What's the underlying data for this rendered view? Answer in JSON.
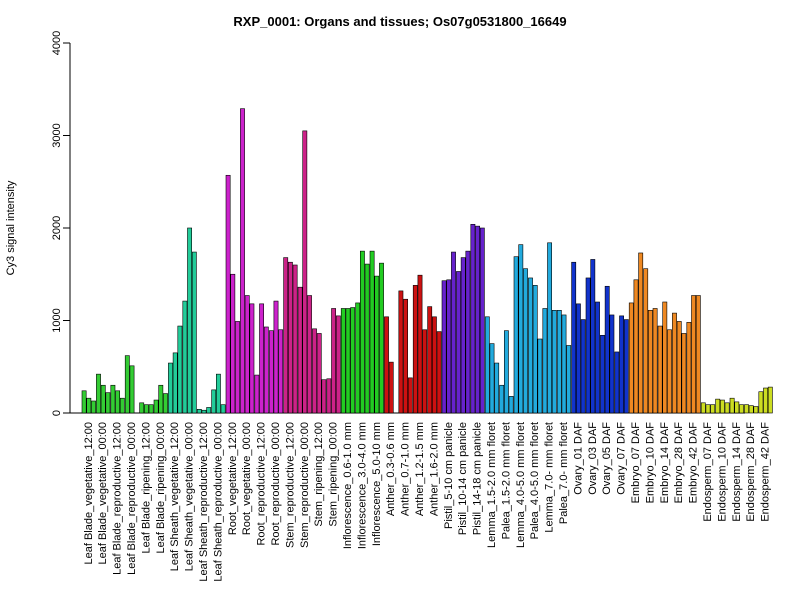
{
  "chart_data": {
    "type": "bar",
    "title": "RXP_0001: Organs and tissues; Os07g0531800_16649",
    "xlabel": "",
    "ylabel": "Cy3 signal intensity",
    "ylim": [
      0,
      4000
    ],
    "yticks": [
      0,
      1000,
      2000,
      3000,
      4000
    ],
    "grid": false,
    "categories": [
      "Leaf Blade_vegetative_12:00",
      "Leaf Blade_vegetative_00:00",
      "Leaf Blade_reproductive_12:00",
      "Leaf Blade_reproductive_00:00",
      "Leaf Blade_ripening_12:00",
      "Leaf Blade_ripening_00:00",
      "Leaf Sheath_vegetative_12:00",
      "Leaf Sheath_vegetative_00:00",
      "Leaf Sheath_reproductive_12:00",
      "Leaf Sheath_reproductive_00:00",
      "Root_vegetative_12:00",
      "Root_vegetative_00:00",
      "Root_reproductive_12:00",
      "Root_reproductive_00:00",
      "Stem_reproductive_12:00",
      "Stem_reproductive_00:00",
      "Stem_ripening_12:00",
      "Stem_ripening_00:00",
      "Inflorescence_0.6-1.0 mm",
      "Inflorescence_3.0-4.0 mm",
      "Inflorescence_5.0-10 mm",
      "Anther_0.3-0.6 mm",
      "Anther_0.7-1.0 mm",
      "Anther_1.2-1.5 mm",
      "Anther_1.6-2.0 mm",
      "Pistil_5-10 cm panicle",
      "Pistil_10-14 cm panicle",
      "Pistil_14-18 cm panicle",
      "Lemma_1.5-2.0 mm floret",
      "Palea_1.5-2.0 mm floret",
      "Lemma_4.0-5.0 mm floret",
      "Palea_4.0-5.0 mm floret",
      "Lemma_7.0- mm floret",
      "Palea_7.0- mm floret",
      "Ovary_01 DAF",
      "Ovary_03 DAF",
      "Ovary_05 DAF",
      "Ovary_07 DAF",
      "Embryo_07 DAF",
      "Embryo_10 DAF",
      "Embryo_14 DAF",
      "Embryo_28 DAF",
      "Embryo_42 DAF",
      "Endosperm_07 DAF",
      "Endosperm_10 DAF",
      "Endosperm_14 DAF",
      "Endosperm_28 DAF",
      "Endosperm_42 DAF"
    ],
    "replicates": [
      [
        240,
        160,
        130
      ],
      [
        420,
        300,
        220
      ],
      [
        300,
        240,
        160
      ],
      [
        620,
        510,
        0
      ],
      [
        110,
        90,
        90
      ],
      [
        140,
        300,
        210
      ],
      [
        540,
        650,
        940
      ],
      [
        1210,
        2000,
        1740
      ],
      [
        40,
        30,
        60
      ],
      [
        250,
        420,
        90
      ],
      [
        2570,
        1500,
        990
      ],
      [
        3290,
        1270,
        1180
      ],
      [
        410,
        1180,
        930
      ],
      [
        890,
        1210,
        900
      ],
      [
        1680,
        1630,
        1600
      ],
      [
        1360,
        3050,
        1270
      ],
      [
        910,
        860,
        360
      ],
      [
        370,
        1130,
        1050
      ],
      [
        1130,
        1130,
        1140
      ],
      [
        1190,
        1750,
        1610
      ],
      [
        1750,
        1480,
        1620
      ],
      [
        1040,
        550,
        0
      ],
      [
        1320,
        1230,
        380
      ],
      [
        1380,
        1490,
        900
      ],
      [
        1150,
        1040,
        880
      ],
      [
        1430,
        1440,
        1740
      ],
      [
        1530,
        1680,
        1750
      ],
      [
        2040,
        2020,
        2000
      ],
      [
        1040,
        750,
        540
      ],
      [
        300,
        890,
        180
      ],
      [
        1690,
        1820,
        1560
      ],
      [
        1460,
        1380,
        800
      ],
      [
        1130,
        1840,
        1110
      ],
      [
        1110,
        1060,
        730
      ],
      [
        1630,
        1180,
        1010
      ],
      [
        1460,
        1660,
        1200
      ],
      [
        840,
        1370,
        1060
      ],
      [
        660,
        1050,
        1010
      ],
      [
        1190,
        1440,
        1730
      ],
      [
        1560,
        1110,
        1130
      ],
      [
        940,
        1200,
        900
      ],
      [
        1080,
        990,
        860
      ],
      [
        980,
        1270,
        1270
      ],
      [
        110,
        90,
        90
      ],
      [
        150,
        140,
        110
      ],
      [
        160,
        120,
        90
      ],
      [
        90,
        80,
        70
      ],
      [
        230,
        270,
        280
      ]
    ],
    "colors": [
      "#33cc33",
      "#33cc33",
      "#33cc33",
      "#33cc33",
      "#33cc33",
      "#33cc33",
      "#22cc99",
      "#22cc99",
      "#22cc99",
      "#22cc99",
      "#cc22cc",
      "#cc22cc",
      "#cc22cc",
      "#cc22cc",
      "#cc2288",
      "#cc2288",
      "#cc2288",
      "#cc2288",
      "#22cc22",
      "#22cc22",
      "#22cc22",
      "#cc1111",
      "#cc1111",
      "#cc1111",
      "#cc1111",
      "#6622cc",
      "#6622cc",
      "#6622cc",
      "#22aadd",
      "#22aadd",
      "#22aadd",
      "#22aadd",
      "#22aadd",
      "#22aadd",
      "#1133cc",
      "#1133cc",
      "#1133cc",
      "#1133cc",
      "#ee8822",
      "#ee8822",
      "#ee8822",
      "#ee8822",
      "#ee8822",
      "#ccdd22",
      "#ccdd22",
      "#ccdd22",
      "#ccdd22",
      "#ccdd22"
    ]
  }
}
